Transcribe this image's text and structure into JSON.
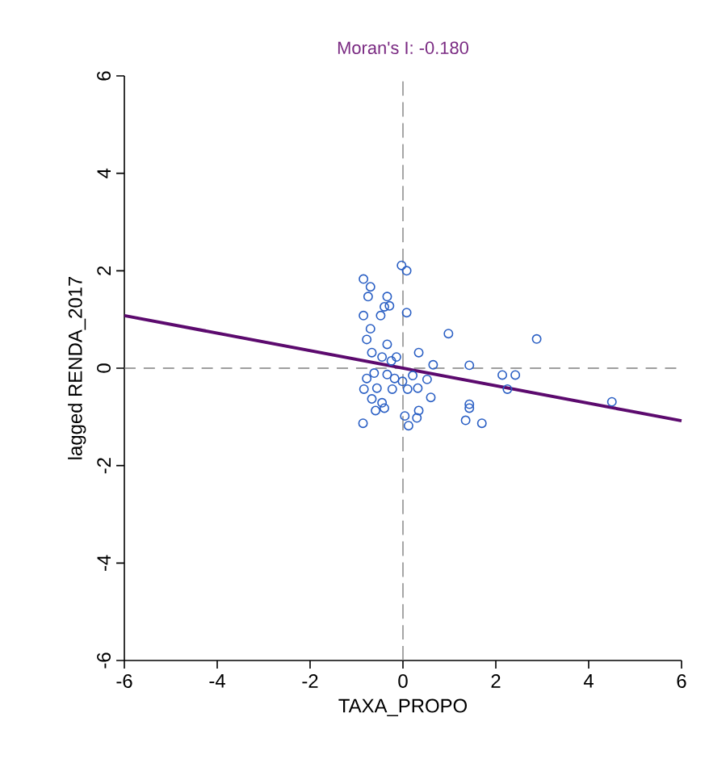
{
  "chart_data": {
    "type": "scatter",
    "title": "Moran's I: -0.180",
    "xlabel": "TAXA_PROPO",
    "ylabel": "lagged RENDA_2017",
    "xlim": [
      -6,
      6
    ],
    "ylim": [
      -6,
      6
    ],
    "xticks": [
      -6,
      -4,
      -2,
      0,
      2,
      4,
      6
    ],
    "yticks": [
      -6,
      -4,
      -2,
      0,
      2,
      4,
      6
    ],
    "grid": false,
    "series": [
      {
        "marker": "circle",
        "color": "#2a5fc4",
        "x": [
          -0.85,
          -0.7,
          -0.75,
          -0.34,
          -0.29,
          -0.4,
          -0.03,
          0.08,
          0.08,
          -0.85,
          -0.48,
          -0.7,
          0.98,
          2.88,
          -0.78,
          -0.34,
          -0.67,
          0.34,
          -0.45,
          -0.25,
          0.65,
          1.43,
          -0.62,
          -0.34,
          0.21,
          2.14,
          2.42,
          2.25,
          0.52,
          -0.78,
          -0.84,
          -0.56,
          -0.23,
          0.1,
          0.32,
          0.6,
          -0.67,
          -0.45,
          1.43,
          1.43,
          4.5,
          -0.59,
          -0.4,
          0.34,
          0.04,
          0.3,
          -0.86,
          1.35,
          1.7,
          0.12,
          -0.14,
          -0.18,
          -0.01
        ],
        "values": [
          1.83,
          1.67,
          1.47,
          1.47,
          1.28,
          1.26,
          2.11,
          2.0,
          1.14,
          1.08,
          1.08,
          0.81,
          0.71,
          0.6,
          0.59,
          0.49,
          0.32,
          0.32,
          0.23,
          0.15,
          0.07,
          0.06,
          -0.1,
          -0.13,
          -0.15,
          -0.14,
          -0.14,
          -0.43,
          -0.23,
          -0.21,
          -0.43,
          -0.41,
          -0.43,
          -0.43,
          -0.41,
          -0.6,
          -0.63,
          -0.71,
          -0.74,
          -0.82,
          -0.69,
          -0.87,
          -0.82,
          -0.87,
          -0.98,
          -1.02,
          -1.13,
          -1.07,
          -1.13,
          -1.18,
          0.23,
          -0.21,
          -0.27
        ]
      },
      {
        "type": "line",
        "marker": "none",
        "color": "#5c0a6e",
        "x": [
          -6,
          6
        ],
        "values": [
          1.08,
          -1.08
        ]
      }
    ],
    "ref_lines": [
      {
        "axis": "x",
        "value": 0,
        "color": "#808080",
        "line_style": "dashed"
      },
      {
        "axis": "y",
        "value": 0,
        "color": "#808080",
        "line_style": "dashed"
      }
    ]
  }
}
